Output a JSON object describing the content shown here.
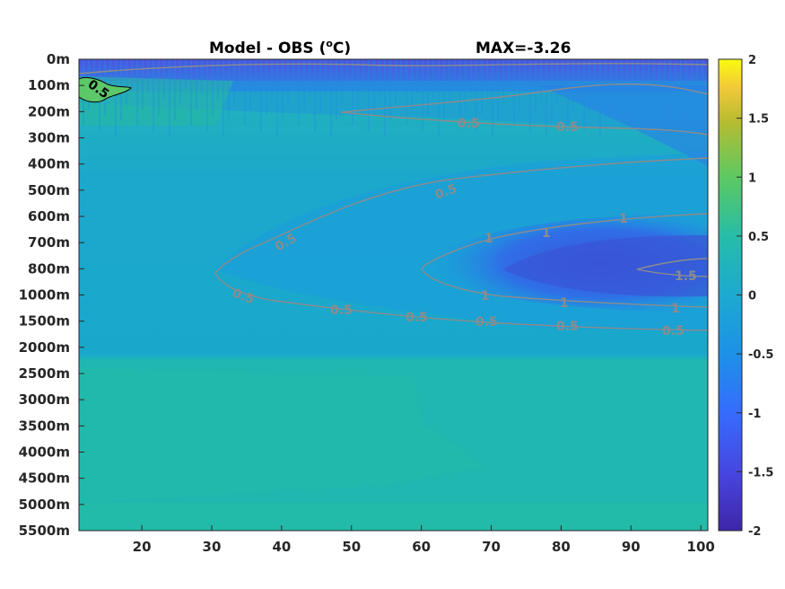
{
  "chart_data": {
    "type": "heatmap",
    "title": "Model - OBS (",
    "title_superscript": "o",
    "title_unit": "C)",
    "max_label": "MAX=-3.26",
    "x_ticks": [
      20,
      30,
      40,
      50,
      60,
      70,
      80,
      90,
      100
    ],
    "xlim": [
      11,
      101
    ],
    "y_tick_labels": [
      "0m",
      "100m",
      "200m",
      "300m",
      "400m",
      "500m",
      "600m",
      "700m",
      "800m",
      "1000m",
      "1500m",
      "2000m",
      "2500m",
      "3000m",
      "3500m",
      "4000m",
      "4500m",
      "5000m",
      "5500m"
    ],
    "colorbar": {
      "ticks": [
        "2",
        "1.5",
        "1",
        "0.5",
        "0",
        "-0.5",
        "-1",
        "-1.5",
        "-2"
      ],
      "range": [
        -2,
        2
      ],
      "colormap": "parula",
      "colors": [
        "#3e26a8",
        "#4745df",
        "#366cfd",
        "#1d90e8",
        "#1caad0",
        "#25bcaa",
        "#5dc962",
        "#b8bc2f",
        "#f3c93a",
        "#f9fb0e"
      ]
    },
    "contours": [
      {
        "level": -0.5,
        "labels": [
          "0.5",
          "0.5",
          "0.5",
          "0.5",
          "0.5",
          "0.5",
          "0.5",
          "0.5",
          "0.5",
          "0.5"
        ],
        "line_color": "#8c8c8c"
      },
      {
        "level": -1,
        "labels": [
          "1",
          "1",
          "1",
          "1",
          "1",
          "1",
          "1.5"
        ],
        "line_color": "#8c8c8c"
      }
    ],
    "positive_patch_label": "0.5",
    "grid": false
  }
}
